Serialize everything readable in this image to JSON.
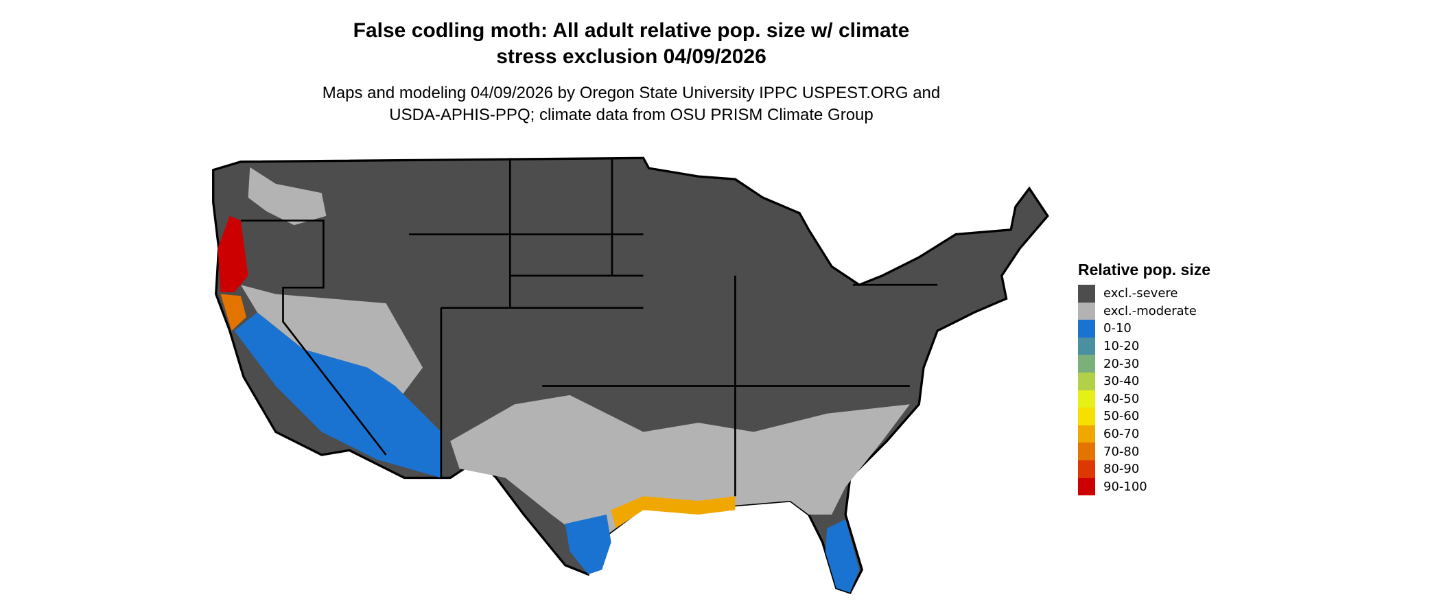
{
  "title_line1": "False codling moth: All adult relative pop. size w/ climate",
  "title_line2": "stress exclusion 04/09/2026",
  "subtitle_line1": "Maps and modeling 04/09/2026 by Oregon State University IPPC USPEST.ORG and",
  "subtitle_line2": "USDA-APHIS-PPQ; climate data from OSU PRISM Climate Group",
  "chart_data": {
    "type": "map",
    "legend_title": "Relative pop. size",
    "legend_placement": "right",
    "legend": [
      {
        "label": "excl.-severe",
        "color": "#4d4d4d"
      },
      {
        "label": "excl.-moderate",
        "color": "#b3b3b3"
      },
      {
        "label": "0-10",
        "color": "#1a73d0"
      },
      {
        "label": "10-20",
        "color": "#4a90a0"
      },
      {
        "label": "20-30",
        "color": "#7bb07a"
      },
      {
        "label": "30-40",
        "color": "#b3d148"
      },
      {
        "label": "40-50",
        "color": "#e6f016"
      },
      {
        "label": "50-60",
        "color": "#f7e000"
      },
      {
        "label": "60-70",
        "color": "#f0a800"
      },
      {
        "label": "70-80",
        "color": "#e37400"
      },
      {
        "label": "80-90",
        "color": "#dc3800"
      },
      {
        "label": "90-100",
        "color": "#cc0000"
      }
    ]
  }
}
